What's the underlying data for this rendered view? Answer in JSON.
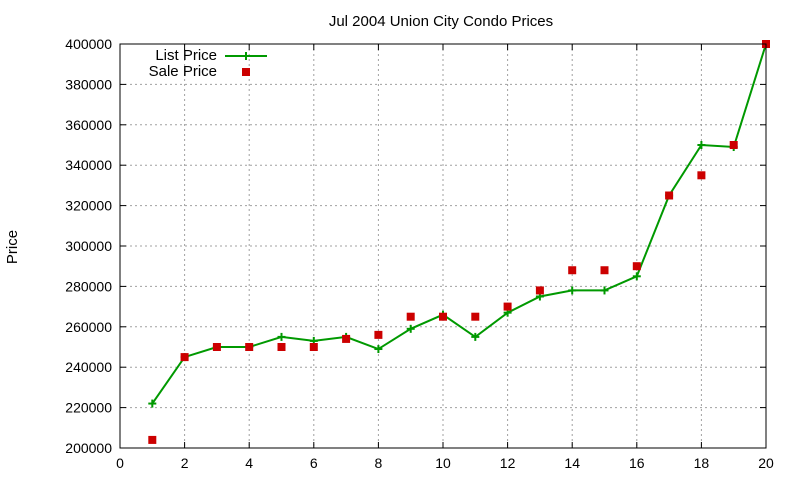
{
  "chart_data": {
    "type": "line",
    "title": "Jul 2004 Union City Condo Prices",
    "xlabel": "",
    "ylabel": "Price",
    "xlim": [
      0,
      20
    ],
    "ylim": [
      200000,
      400000
    ],
    "xticks": [
      0,
      2,
      4,
      6,
      8,
      10,
      12,
      14,
      16,
      18,
      20
    ],
    "yticks": [
      200000,
      220000,
      240000,
      260000,
      280000,
      300000,
      320000,
      340000,
      360000,
      380000,
      400000
    ],
    "grid": true,
    "legend_position": "top-left",
    "series": [
      {
        "name": "List Price",
        "style": "line-with-plus-markers",
        "color": "#009900",
        "x": [
          1,
          2,
          3,
          4,
          5,
          6,
          7,
          8,
          9,
          10,
          11,
          12,
          13,
          14,
          15,
          16,
          17,
          18,
          19,
          20
        ],
        "y": [
          222000,
          245000,
          250000,
          250000,
          255000,
          253000,
          255000,
          249000,
          259000,
          266000,
          255000,
          267000,
          275000,
          278000,
          278000,
          285000,
          325000,
          350000,
          349000,
          400000
        ]
      },
      {
        "name": "Sale Price",
        "style": "square-markers",
        "color": "#cc0000",
        "x": [
          1,
          2,
          3,
          4,
          5,
          6,
          7,
          8,
          9,
          10,
          11,
          12,
          13,
          14,
          15,
          16,
          17,
          18,
          19,
          20
        ],
        "y": [
          204000,
          245000,
          250000,
          250000,
          250000,
          250000,
          254000,
          256000,
          265000,
          265000,
          265000,
          270000,
          278000,
          288000,
          288000,
          290000,
          325000,
          335000,
          350000,
          400000
        ]
      }
    ]
  }
}
